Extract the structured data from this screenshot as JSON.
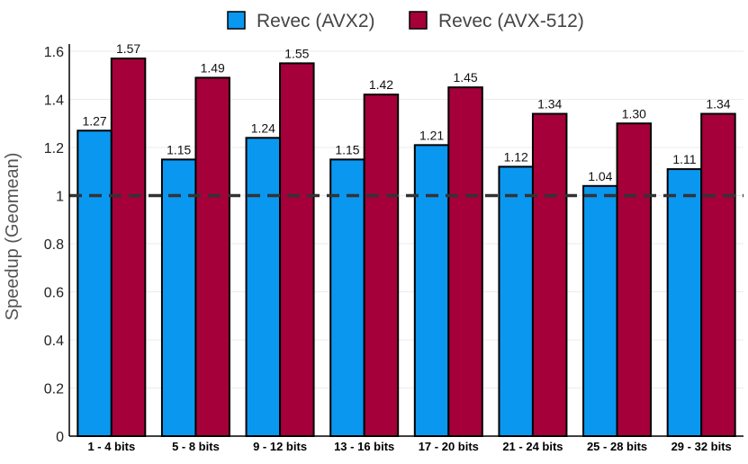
{
  "chart_data": {
    "type": "bar",
    "categories": [
      "1 - 4 bits",
      "5 - 8 bits",
      "9 - 12 bits",
      "13 - 16 bits",
      "17 - 20 bits",
      "21 - 24 bits",
      "25 - 28 bits",
      "29 - 32 bits"
    ],
    "series": [
      {
        "name": "Revec (AVX2)",
        "color": "#0a97f0",
        "values": [
          1.27,
          1.15,
          1.24,
          1.15,
          1.21,
          1.12,
          1.04,
          1.11
        ],
        "labels": [
          "1.27",
          "1.15",
          "1.24",
          "1.15",
          "1.21",
          "1.12",
          "1.04",
          "1.11"
        ]
      },
      {
        "name": "Revec (AVX-512)",
        "color": "#a5003a",
        "values": [
          1.57,
          1.49,
          1.55,
          1.42,
          1.45,
          1.34,
          1.3,
          1.34
        ],
        "labels": [
          "1.57",
          "1.49",
          "1.55",
          "1.42",
          "1.45",
          "1.34",
          "1.30",
          "1.34"
        ]
      }
    ],
    "xlabel": "",
    "ylabel": "Speedup (Geomean)",
    "ylim": [
      0,
      1.6
    ],
    "yticks": [
      0,
      0.2,
      0.4,
      0.6,
      0.8,
      1,
      1.2,
      1.4,
      1.6
    ],
    "ytick_labels": [
      "0",
      "0.2",
      "0.4",
      "0.6",
      "0.8",
      "1",
      "1.2",
      "1.4",
      "1.6"
    ],
    "reference_line": {
      "value": 1,
      "style": "dashed",
      "color": "#333333"
    },
    "grid": true,
    "legend_position": "top"
  }
}
